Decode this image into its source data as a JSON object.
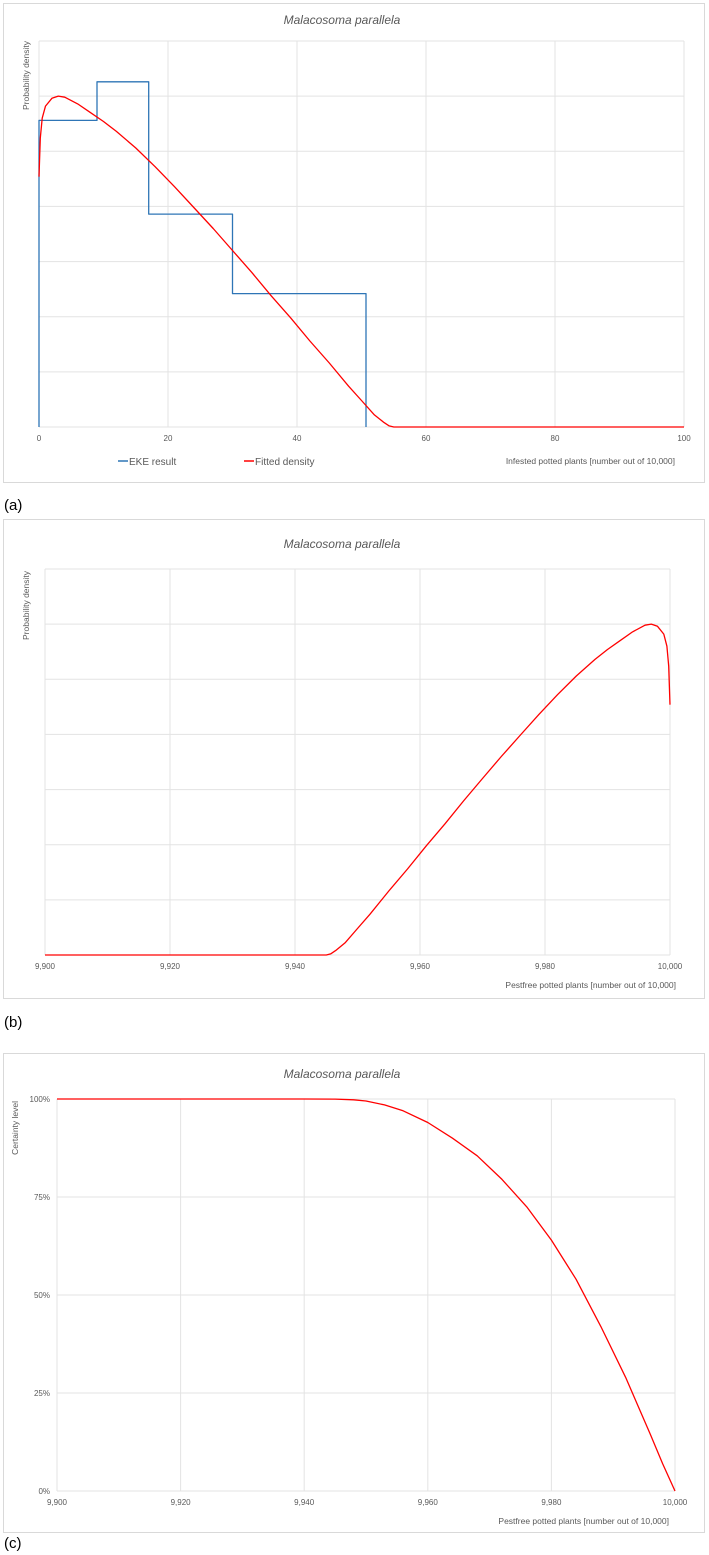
{
  "chart_data": [
    {
      "type": "line",
      "panel_label": "(a)",
      "title": "Malacosoma parallela",
      "xlabel": "Infested potted plants  [number out of 10,000]",
      "ylabel": "Probability density",
      "xlim": [
        0,
        100
      ],
      "xticks": [
        "0",
        "20",
        "40",
        "60",
        "80",
        "100"
      ],
      "xtick_values": [
        0,
        20,
        40,
        60,
        80,
        100
      ],
      "ylim": [
        0,
        0.035
      ],
      "y_gridlines": 7,
      "grid": true,
      "legend_position": "bottom-left",
      "series": [
        {
          "name": "EKE result",
          "kind": "step",
          "color": "#2e75b6",
          "x": [
            0,
            0,
            9,
            9,
            17,
            17,
            30,
            30,
            50.7,
            50.7
          ],
          "y": [
            0,
            0.0278,
            0.0278,
            0.0313,
            0.0313,
            0.0193,
            0.0193,
            0.0121,
            0.0121,
            0
          ]
        },
        {
          "name": "Fitted density",
          "kind": "line",
          "color": "#ff0000",
          "x": [
            0,
            0.2,
            0.5,
            1,
            2,
            3,
            4,
            6,
            8,
            10,
            12,
            15,
            18,
            21,
            24,
            27,
            30,
            33,
            36,
            39,
            42,
            45,
            48,
            50,
            52,
            53.5,
            54.3,
            55,
            60,
            70,
            80,
            90,
            100
          ],
          "y": [
            0.0227,
            0.0262,
            0.028,
            0.0291,
            0.0298,
            0.03,
            0.0299,
            0.0293,
            0.0285,
            0.0277,
            0.0268,
            0.0253,
            0.0236,
            0.0218,
            0.0199,
            0.018,
            0.016,
            0.014,
            0.0119,
            0.0099,
            0.0078,
            0.0058,
            0.0037,
            0.0024,
            0.0011,
            0.0004,
            0.0001,
            0,
            0,
            0,
            0,
            0,
            0
          ]
        }
      ]
    },
    {
      "type": "line",
      "panel_label": "(b)",
      "title": "Malacosoma parallela",
      "xlabel": "Pestfree potted plants [number out of 10,000]",
      "ylabel": "Probability density",
      "xlim": [
        9900,
        10000
      ],
      "xticks": [
        "9,900",
        "9,920",
        "9,940",
        "9,960",
        "9,980",
        "10,000"
      ],
      "xtick_values": [
        9900,
        9920,
        9940,
        9960,
        9980,
        10000
      ],
      "ylim": [
        0,
        0.035
      ],
      "y_gridlines": 7,
      "grid": true,
      "series": [
        {
          "name": "Fitted density",
          "kind": "line",
          "color": "#ff0000",
          "x": [
            9900,
            9920,
            9940,
            9945,
            9945.7,
            9946.5,
            9948,
            9950,
            9952,
            9955,
            9958,
            9961,
            9964,
            9967,
            9970,
            9973,
            9976,
            9979,
            9982,
            9985,
            9988,
            9990,
            9992,
            9994,
            9996,
            9997,
            9998,
            9999,
            9999.5,
            9999.8,
            10000
          ],
          "y": [
            0,
            0,
            0,
            0,
            0.0001,
            0.0004,
            0.0011,
            0.0024,
            0.0037,
            0.0058,
            0.0078,
            0.0099,
            0.0119,
            0.014,
            0.016,
            0.018,
            0.0199,
            0.0218,
            0.0236,
            0.0253,
            0.0268,
            0.0277,
            0.0285,
            0.0293,
            0.0299,
            0.03,
            0.0298,
            0.0291,
            0.028,
            0.0262,
            0.0227
          ]
        }
      ]
    },
    {
      "type": "line",
      "panel_label": "(c)",
      "title": "Malacosoma parallela",
      "xlabel": "Pestfree potted plants [number out of 10,000]",
      "ylabel": "Certainty level",
      "xlim": [
        9900,
        10000
      ],
      "xticks": [
        "9,900",
        "9,920",
        "9,940",
        "9,960",
        "9,980",
        "10,000"
      ],
      "xtick_values": [
        9900,
        9920,
        9940,
        9960,
        9980,
        10000
      ],
      "ylim": [
        0,
        1
      ],
      "yticks": [
        "0%",
        "25%",
        "50%",
        "75%",
        "100%"
      ],
      "ytick_values": [
        0,
        0.25,
        0.5,
        0.75,
        1
      ],
      "grid": true,
      "series": [
        {
          "name": "Certainty level",
          "kind": "line",
          "color": "#ff0000",
          "x": [
            9900,
            9940,
            9945,
            9948,
            9950,
            9953,
            9956,
            9960,
            9964,
            9968,
            9972,
            9976,
            9980,
            9984,
            9988,
            9992,
            9996,
            9998,
            10000
          ],
          "y": [
            1.0,
            1.0,
            0.9997,
            0.998,
            0.995,
            0.985,
            0.97,
            0.94,
            0.9,
            0.855,
            0.795,
            0.725,
            0.64,
            0.54,
            0.42,
            0.29,
            0.145,
            0.07,
            0
          ]
        }
      ]
    }
  ]
}
